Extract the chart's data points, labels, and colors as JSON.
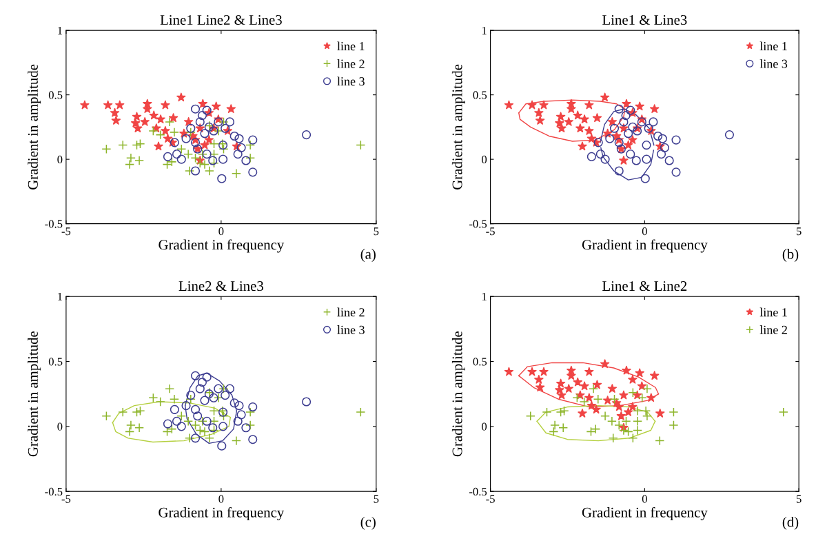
{
  "chart_data": [
    {
      "type": "scatter",
      "title": "Line1 Line2 & Line3",
      "xlabel": "Gradient in frequency",
      "ylabel": "Gradient in amplitude",
      "annotations": [
        "(a)"
      ],
      "xlim": [
        -5,
        5
      ],
      "ylim": [
        -0.5,
        1
      ],
      "xticks": [
        -5,
        0,
        5
      ],
      "yticks": [
        -0.5,
        0,
        0.5,
        1
      ],
      "grid": false,
      "legend": "top right",
      "series": [
        {
          "name": "line 1",
          "color": "#f04545",
          "marker": "star",
          "x": [
            -4.4,
            -3.65,
            -3.27,
            -3.43,
            -3.39,
            -2.38,
            -2.38,
            -1.8,
            -1.29,
            -2.72,
            -2.76,
            -2.69,
            -2.46,
            -2.17,
            -1.95,
            -1.54,
            -2.09,
            -1.8,
            -1.72,
            -2.02,
            -1.57,
            -1.05,
            -1.2,
            -0.91,
            -0.59,
            -0.16,
            0.32,
            -0.39,
            -0.09,
            -0.68,
            -0.39,
            -0.76,
            -0.68,
            -0.24,
            0.21,
            0.5,
            -0.83,
            -0.53
          ],
          "values": [
            0.42,
            0.42,
            0.42,
            0.36,
            0.3,
            0.43,
            0.39,
            0.42,
            0.48,
            0.33,
            0.28,
            0.24,
            0.29,
            0.34,
            0.31,
            0.32,
            0.24,
            0.22,
            0.16,
            0.1,
            0.13,
            0.29,
            0.2,
            0.18,
            0.43,
            0.41,
            0.39,
            0.36,
            0.31,
            0.24,
            0.15,
            0.08,
            -0.01,
            0.24,
            0.22,
            0.1,
            0.15,
            0.11
          ]
        },
        {
          "name": "line 2",
          "color": "#8db52a",
          "marker": "cross",
          "x": [
            -3.7,
            -3.17,
            -2.72,
            -2.61,
            -2.91,
            -2.95,
            -2.64,
            -1.74,
            -1.59,
            -1.02,
            -0.38,
            -0.53,
            -0.68,
            -0.23,
            0.04,
            0.49,
            0.94,
            0.94,
            -2.19,
            -1.96,
            -1.66,
            -1.51,
            -1.28,
            -1.06,
            -0.83,
            -0.38,
            -0.08,
            -0.23,
            0.08,
            -0.98,
            -0.6,
            -0.23,
            0.08,
            4.5
          ],
          "values": [
            0.08,
            0.11,
            0.11,
            0.12,
            0.01,
            -0.04,
            -0.01,
            -0.04,
            -0.02,
            -0.09,
            -0.09,
            -0.04,
            -0.03,
            -0.03,
            0.12,
            -0.11,
            0.11,
            0.01,
            0.22,
            0.19,
            0.29,
            0.21,
            0.08,
            0.04,
            0.01,
            0.26,
            0.22,
            0.12,
            0.29,
            0.21,
            0.04,
            0.04,
            0.08,
            0.11
          ]
        },
        {
          "name": "line 3",
          "color": "#3c3c90",
          "marker": "circle",
          "x": [
            -0.83,
            -0.46,
            -0.61,
            -0.68,
            -0.39,
            -0.09,
            0.28,
            0.13,
            -0.24,
            -0.53,
            0.43,
            0.58,
            1.02,
            0.65,
            0.54,
            0.8,
            1.02,
            0.02,
            -0.83,
            -0.27,
            0.06,
            -1.28,
            -1.43,
            -1.72,
            -1.5,
            -1.13,
            -0.76,
            -0.46,
            -0.83,
            2.75,
            -0.98,
            0.06
          ],
          "values": [
            0.39,
            0.38,
            0.34,
            0.29,
            0.25,
            0.29,
            0.29,
            0.24,
            0.22,
            0.2,
            0.18,
            0.16,
            0.15,
            0.09,
            0.04,
            -0.01,
            -0.1,
            -0.15,
            -0.09,
            -0.01,
            0.0,
            0.0,
            0.04,
            0.02,
            0.13,
            0.16,
            0.08,
            0.04,
            0.13,
            0.19,
            0.24,
            0.11
          ]
        }
      ]
    },
    {
      "type": "scatter",
      "title": "Line1 & Line3",
      "xlabel": "Gradient in frequency",
      "ylabel": "Gradient in amplitude",
      "annotations": [
        "(b)"
      ],
      "xlim": [
        -5,
        5
      ],
      "ylim": [
        -0.5,
        1
      ],
      "xticks": [
        -5,
        0,
        5
      ],
      "yticks": [
        -0.5,
        0,
        0.5,
        1
      ],
      "grid": false,
      "legend": "top right",
      "series": [
        {
          "name": "line 1",
          "color": "#f04545",
          "marker": "star",
          "x": [
            -4.4,
            -3.65,
            -3.27,
            -3.43,
            -3.39,
            -2.38,
            -2.38,
            -1.8,
            -1.29,
            -2.72,
            -2.76,
            -2.69,
            -2.46,
            -2.17,
            -1.95,
            -1.54,
            -2.09,
            -1.8,
            -1.72,
            -2.02,
            -1.57,
            -1.05,
            -1.2,
            -0.91,
            -0.59,
            -0.16,
            0.32,
            -0.39,
            -0.09,
            -0.68,
            -0.39,
            -0.76,
            -0.68,
            -0.24,
            0.21,
            0.5,
            -0.83,
            -0.53
          ],
          "values": [
            0.42,
            0.42,
            0.42,
            0.36,
            0.3,
            0.43,
            0.39,
            0.42,
            0.48,
            0.33,
            0.28,
            0.24,
            0.29,
            0.34,
            0.31,
            0.32,
            0.24,
            0.22,
            0.16,
            0.1,
            0.13,
            0.29,
            0.2,
            0.18,
            0.43,
            0.41,
            0.39,
            0.36,
            0.31,
            0.24,
            0.15,
            0.08,
            -0.01,
            0.24,
            0.22,
            0.1,
            0.15,
            0.11
          ]
        },
        {
          "name": "line 3",
          "color": "#3c3c90",
          "marker": "circle",
          "x": [
            -0.83,
            -0.46,
            -0.61,
            -0.68,
            -0.39,
            -0.09,
            0.28,
            0.13,
            -0.24,
            -0.53,
            0.43,
            0.58,
            1.02,
            0.65,
            0.54,
            0.8,
            1.02,
            0.02,
            -0.83,
            -0.27,
            0.06,
            -1.28,
            -1.43,
            -1.72,
            -1.5,
            -1.13,
            -0.76,
            -0.46,
            -0.83,
            2.75,
            -0.98,
            0.06
          ],
          "values": [
            0.39,
            0.38,
            0.34,
            0.29,
            0.25,
            0.29,
            0.29,
            0.24,
            0.22,
            0.2,
            0.18,
            0.16,
            0.15,
            0.09,
            0.04,
            -0.01,
            -0.1,
            -0.15,
            -0.09,
            -0.01,
            0.0,
            0.0,
            0.04,
            0.02,
            0.13,
            0.16,
            0.08,
            0.04,
            0.13,
            0.19,
            0.24,
            0.11
          ]
        },
        {
          "type": "line",
          "color": "#f04545",
          "x": [
            -4.08,
            -3.85,
            -3.25,
            -2.34,
            -1.44,
            -0.91,
            -0.64
          ],
          "values": [
            0.36,
            0.43,
            0.45,
            0.46,
            0.45,
            0.43,
            0.39
          ]
        },
        {
          "type": "line",
          "color": "#f04545",
          "x": [
            -4.08,
            -4.04,
            -3.7,
            -3.1,
            -2.34,
            -1.59,
            -0.98,
            -0.68,
            -0.64
          ],
          "values": [
            0.36,
            0.31,
            0.25,
            0.18,
            0.14,
            0.15,
            0.23,
            0.33,
            0.39
          ]
        },
        {
          "type": "line",
          "color": "#3c3c90",
          "x": [
            -1.44,
            -1.3,
            -1.0,
            -0.68,
            -0.3,
            0.15,
            0.3
          ],
          "values": [
            0.13,
            0.27,
            0.37,
            0.39,
            0.35,
            0.24,
            0.11
          ]
        },
        {
          "type": "line",
          "color": "#3c3c90",
          "x": [
            -1.42,
            -1.35,
            -1.0,
            -0.53,
            -0.1,
            0.2,
            0.29
          ],
          "values": [
            0.09,
            0.02,
            -0.09,
            -0.16,
            -0.14,
            -0.04,
            0.07
          ]
        }
      ]
    },
    {
      "type": "scatter",
      "title": "Line2 & Line3",
      "xlabel": "Gradient in frequency",
      "ylabel": "Gradient in amplitude",
      "annotations": [
        "(c)"
      ],
      "xlim": [
        -5,
        5
      ],
      "ylim": [
        -0.5,
        1
      ],
      "xticks": [
        -5,
        0,
        5
      ],
      "yticks": [
        -0.5,
        0,
        0.5,
        1
      ],
      "grid": false,
      "legend": "top right",
      "series": [
        {
          "name": "line 2",
          "color": "#8db52a",
          "marker": "cross",
          "x": [
            -3.7,
            -3.17,
            -2.72,
            -2.61,
            -2.91,
            -2.95,
            -2.64,
            -1.74,
            -1.59,
            -1.02,
            -0.38,
            -0.53,
            -0.68,
            -0.23,
            0.04,
            0.49,
            0.94,
            0.94,
            -2.19,
            -1.96,
            -1.66,
            -1.51,
            -1.28,
            -1.06,
            -0.83,
            -0.38,
            -0.08,
            -0.23,
            0.08,
            -0.98,
            -0.6,
            -0.23,
            0.08,
            4.5
          ],
          "values": [
            0.08,
            0.11,
            0.11,
            0.12,
            0.01,
            -0.04,
            -0.01,
            -0.04,
            -0.02,
            -0.09,
            -0.09,
            -0.04,
            -0.03,
            -0.03,
            0.12,
            -0.11,
            0.11,
            0.01,
            0.22,
            0.19,
            0.29,
            0.21,
            0.08,
            0.04,
            0.01,
            0.26,
            0.22,
            0.12,
            0.29,
            0.21,
            0.04,
            0.04,
            0.08,
            0.11
          ]
        },
        {
          "name": "line 3",
          "color": "#3c3c90",
          "marker": "circle",
          "x": [
            -0.83,
            -0.46,
            -0.61,
            -0.68,
            -0.39,
            -0.09,
            0.28,
            0.13,
            -0.24,
            -0.53,
            0.43,
            0.58,
            1.02,
            0.65,
            0.54,
            0.8,
            1.02,
            0.02,
            -0.83,
            -0.27,
            0.06,
            -1.28,
            -1.43,
            -1.72,
            -1.5,
            -1.13,
            -0.76,
            -0.46,
            -0.83,
            2.75,
            -0.98,
            0.06
          ],
          "values": [
            0.39,
            0.38,
            0.34,
            0.29,
            0.25,
            0.29,
            0.29,
            0.24,
            0.22,
            0.2,
            0.18,
            0.16,
            0.15,
            0.09,
            0.04,
            -0.01,
            -0.1,
            -0.15,
            -0.09,
            -0.01,
            0.0,
            0.0,
            0.04,
            0.02,
            0.13,
            0.16,
            0.08,
            0.04,
            0.13,
            0.19,
            0.24,
            0.11
          ]
        },
        {
          "type": "line",
          "color": "#b5d040",
          "x": [
            -3.5,
            -3.3,
            -2.8,
            -2.0,
            -1.0,
            -0.2,
            0.3
          ],
          "values": [
            0.03,
            0.1,
            0.16,
            0.19,
            0.18,
            0.14,
            0.07
          ]
        },
        {
          "type": "line",
          "color": "#b5d040",
          "x": [
            -3.5,
            -3.4,
            -3.0,
            -2.2,
            -1.2,
            -0.3,
            0.25,
            0.3
          ],
          "values": [
            0.03,
            -0.04,
            -0.09,
            -0.12,
            -0.11,
            -0.06,
            0.0,
            0.07
          ]
        },
        {
          "type": "line",
          "color": "#3c3c90",
          "x": [
            -1.16,
            -1.0,
            -0.75,
            -0.46,
            -0.05,
            0.35,
            0.5
          ],
          "values": [
            0.16,
            0.3,
            0.39,
            0.41,
            0.35,
            0.24,
            0.12
          ]
        },
        {
          "type": "line",
          "color": "#3c3c90",
          "x": [
            -1.16,
            -1.1,
            -0.8,
            -0.39,
            0.05,
            0.4,
            0.5
          ],
          "values": [
            0.16,
            0.06,
            -0.06,
            -0.13,
            -0.11,
            -0.02,
            0.12
          ]
        }
      ]
    },
    {
      "type": "scatter",
      "title": "Line1 & Line2",
      "xlabel": "Gradient in frequency",
      "ylabel": "Gradient in amplitude",
      "annotations": [
        "(d)"
      ],
      "xlim": [
        -5,
        5
      ],
      "ylim": [
        -0.5,
        1
      ],
      "xticks": [
        -5,
        0,
        5
      ],
      "yticks": [
        -0.5,
        0,
        0.5,
        1
      ],
      "grid": false,
      "legend": "top right",
      "series": [
        {
          "name": "line 1",
          "color": "#f04545",
          "marker": "star",
          "x": [
            -4.4,
            -3.65,
            -3.27,
            -3.43,
            -3.39,
            -2.38,
            -2.38,
            -1.8,
            -1.29,
            -2.72,
            -2.76,
            -2.69,
            -2.46,
            -2.17,
            -1.95,
            -1.54,
            -2.09,
            -1.8,
            -1.72,
            -2.02,
            -1.57,
            -1.05,
            -1.2,
            -0.91,
            -0.59,
            -0.16,
            0.32,
            -0.39,
            -0.09,
            -0.68,
            -0.39,
            -0.76,
            -0.68,
            -0.24,
            0.21,
            0.5,
            -0.83,
            -0.53
          ],
          "values": [
            0.42,
            0.42,
            0.42,
            0.36,
            0.3,
            0.43,
            0.39,
            0.42,
            0.48,
            0.33,
            0.28,
            0.24,
            0.29,
            0.34,
            0.31,
            0.32,
            0.24,
            0.22,
            0.16,
            0.1,
            0.13,
            0.29,
            0.2,
            0.18,
            0.43,
            0.41,
            0.39,
            0.36,
            0.31,
            0.24,
            0.15,
            0.08,
            -0.01,
            0.24,
            0.22,
            0.1,
            0.15,
            0.11
          ]
        },
        {
          "name": "line 2",
          "color": "#8db52a",
          "marker": "cross",
          "x": [
            -3.7,
            -3.17,
            -2.72,
            -2.61,
            -2.91,
            -2.95,
            -2.64,
            -1.74,
            -1.59,
            -1.02,
            -0.38,
            -0.53,
            -0.68,
            -0.23,
            0.04,
            0.49,
            0.94,
            0.94,
            -2.19,
            -1.96,
            -1.66,
            -1.51,
            -1.28,
            -1.06,
            -0.83,
            -0.38,
            -0.08,
            -0.23,
            0.08,
            -0.98,
            -0.6,
            -0.23,
            0.08,
            4.5
          ],
          "values": [
            0.08,
            0.11,
            0.11,
            0.12,
            0.01,
            -0.04,
            -0.01,
            -0.04,
            -0.02,
            -0.09,
            -0.09,
            -0.04,
            -0.03,
            -0.03,
            0.12,
            -0.11,
            0.11,
            0.01,
            0.22,
            0.19,
            0.29,
            0.21,
            0.08,
            0.04,
            0.01,
            0.26,
            0.22,
            0.12,
            0.29,
            0.21,
            0.04,
            0.04,
            0.08,
            0.11
          ]
        },
        {
          "type": "line",
          "color": "#f04545",
          "x": [
            -4.08,
            -3.8,
            -3.0,
            -2.0,
            -1.0,
            -0.2,
            0.35,
            0.45
          ],
          "values": [
            0.39,
            0.46,
            0.49,
            0.49,
            0.45,
            0.38,
            0.3,
            0.25
          ]
        },
        {
          "type": "line",
          "color": "#f04545",
          "x": [
            -4.08,
            -3.6,
            -2.8,
            -1.8,
            -0.8,
            0.1,
            0.45
          ],
          "values": [
            0.39,
            0.3,
            0.21,
            0.15,
            0.16,
            0.2,
            0.25
          ]
        },
        {
          "type": "line",
          "color": "#b5d040",
          "x": [
            -3.49,
            -3.2,
            -2.5,
            -1.5,
            -0.5,
            0.1,
            0.34
          ],
          "values": [
            0.04,
            0.11,
            0.15,
            0.16,
            0.15,
            0.11,
            0.04
          ]
        },
        {
          "type": "line",
          "color": "#b5d040",
          "x": [
            -3.49,
            -3.2,
            -2.5,
            -1.5,
            -0.5,
            0.2,
            0.34
          ],
          "values": [
            0.04,
            -0.05,
            -0.1,
            -0.11,
            -0.09,
            -0.03,
            0.04
          ]
        }
      ]
    }
  ]
}
